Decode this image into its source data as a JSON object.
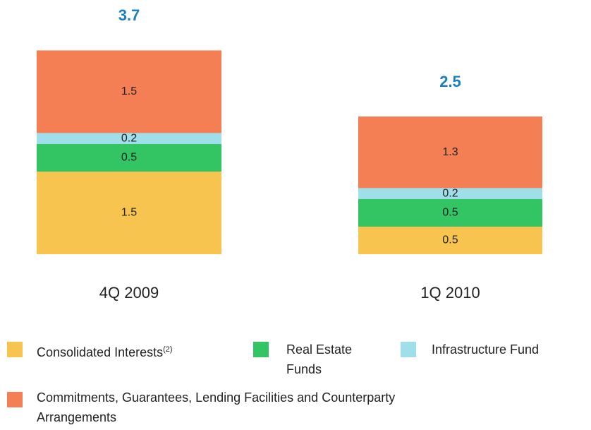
{
  "chart_data": {
    "type": "stacked_bar",
    "categories": [
      "4Q 2009",
      "1Q 2010"
    ],
    "totals": [
      3.7,
      2.5
    ],
    "total_color": "#1a7fc1",
    "series": [
      {
        "name": "Consolidated Interests",
        "note": "(2)",
        "color": "#f7c54f",
        "values": [
          1.5,
          0.5
        ]
      },
      {
        "name": "Real Estate Funds",
        "color": "#33c464",
        "values": [
          0.5,
          0.5
        ]
      },
      {
        "name": "Infrastructure Fund",
        "color": "#9edfea",
        "values": [
          0.2,
          0.2
        ]
      },
      {
        "name": "Commitments, Guarantees, Lending Facilities and Counterparty Arrangements",
        "color": "#f47f55",
        "values": [
          1.5,
          1.3
        ]
      }
    ]
  }
}
